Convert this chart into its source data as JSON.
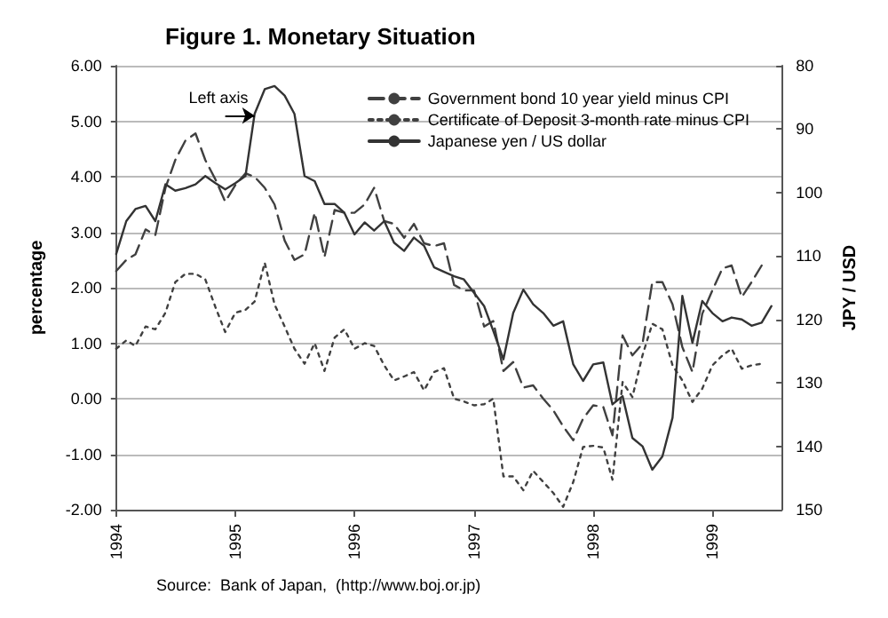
{
  "chart_data": {
    "type": "line",
    "title": "Figure 1. Monetary Situation",
    "ylabel": "percentage",
    "y2label": "JPY / USD",
    "annotations": [
      {
        "text": "Left axis",
        "x": "1995-03",
        "y": 5.1
      },
      "Source:  Bank of Japan,  (http://www.boj.or.jp)"
    ],
    "x": [
      "1994-01",
      "1994-02",
      "1994-03",
      "1994-04",
      "1994-05",
      "1994-06",
      "1994-07",
      "1994-08",
      "1994-09",
      "1994-10",
      "1994-11",
      "1994-12",
      "1995-01",
      "1995-02",
      "1995-03",
      "1995-04",
      "1995-05",
      "1995-06",
      "1995-07",
      "1995-08",
      "1995-09",
      "1995-10",
      "1995-11",
      "1995-12",
      "1996-01",
      "1996-02",
      "1996-03",
      "1996-04",
      "1996-05",
      "1996-06",
      "1996-07",
      "1996-08",
      "1996-09",
      "1996-10",
      "1996-11",
      "1996-12",
      "1997-01",
      "1997-02",
      "1997-03",
      "1997-04",
      "1997-05",
      "1997-06",
      "1997-07",
      "1997-08",
      "1997-09",
      "1997-10",
      "1997-11",
      "1997-12",
      "1998-01",
      "1998-02",
      "1998-03",
      "1998-04",
      "1998-05",
      "1998-06",
      "1998-07",
      "1998-08",
      "1998-09",
      "1998-10",
      "1998-11",
      "1998-12",
      "1999-01",
      "1999-02",
      "1999-03",
      "1999-04",
      "1999-05",
      "1999-06",
      "1999-07"
    ],
    "series": [
      {
        "name": "Government bond 10 year yield minus CPI",
        "color": "#404040",
        "line_style": "dashed",
        "values": [
          2.3,
          2.5,
          2.6,
          3.05,
          2.95,
          3.8,
          4.3,
          4.65,
          4.78,
          4.3,
          3.95,
          3.55,
          3.85,
          4.06,
          4.0,
          3.8,
          3.5,
          2.85,
          2.5,
          2.6,
          3.35,
          2.55,
          3.4,
          3.35,
          3.35,
          3.5,
          3.8,
          3.2,
          3.15,
          2.9,
          3.15,
          2.8,
          2.75,
          2.8,
          2.05,
          1.95,
          1.95,
          1.3,
          1.4,
          0.5,
          0.66,
          0.2,
          0.24,
          0.0,
          -0.21,
          -0.5,
          -0.75,
          -0.36,
          -0.12,
          -0.15,
          -0.66,
          1.14,
          0.78,
          0.99,
          2.1,
          2.1,
          1.7,
          0.93,
          0.48,
          1.53,
          1.95,
          2.35,
          2.4,
          1.83,
          2.1,
          2.4,
          null
        ]
      },
      {
        "name": "Certificate of Deposit 3-month rate minus CPI",
        "color": "#404040",
        "line_style": "dotted",
        "values": [
          0.9,
          1.05,
          0.95,
          1.3,
          1.25,
          1.55,
          2.1,
          2.25,
          2.25,
          2.15,
          1.65,
          1.2,
          1.55,
          1.6,
          1.75,
          2.45,
          1.7,
          1.3,
          0.9,
          0.63,
          1.0,
          0.5,
          1.1,
          1.25,
          0.9,
          1.0,
          0.95,
          0.6,
          0.33,
          0.4,
          0.48,
          0.15,
          0.48,
          0.55,
          0.0,
          -0.05,
          -0.12,
          -0.1,
          0.0,
          -1.4,
          -1.4,
          -1.65,
          -1.3,
          -1.5,
          -1.7,
          -1.95,
          -1.5,
          -0.87,
          -0.85,
          -0.88,
          -1.46,
          0.3,
          0.03,
          0.78,
          1.35,
          1.25,
          0.6,
          0.33,
          -0.06,
          0.18,
          0.6,
          0.78,
          0.9,
          0.54,
          0.6,
          0.63,
          null
        ]
      },
      {
        "name": "Japanese yen / US dollar",
        "color": "#333333",
        "line_style": "solid",
        "axis": "y2",
        "values": [
          109.7,
          104.5,
          102.6,
          102.1,
          104.5,
          98.7,
          99.7,
          99.3,
          98.7,
          97.4,
          98.5,
          99.5,
          98.5,
          97.4,
          87.6,
          83.7,
          83.2,
          84.7,
          87.6,
          97.4,
          98.2,
          101.8,
          101.8,
          103.2,
          106.6,
          104.7,
          106,
          104.5,
          107.9,
          109.2,
          107.1,
          108.4,
          111.8,
          112.5,
          113.2,
          113.7,
          115.8,
          117.9,
          121.8,
          126.3,
          119,
          115.3,
          117.6,
          119,
          121,
          120.3,
          127.1,
          129.7,
          127.1,
          126.8,
          133.4,
          132.1,
          138.7,
          140,
          143.7,
          141.6,
          135.5,
          116.3,
          123.7,
          117.1,
          119,
          120.3,
          119.7,
          120,
          121,
          120.5,
          117.9
        ]
      }
    ],
    "xlim": [
      "1994-01",
      "1999-08"
    ],
    "xticks": [
      "1994",
      "1995",
      "1996",
      "1997",
      "1998",
      "1999"
    ],
    "ylim": [
      -2,
      6
    ],
    "yticks": [
      {
        "value": -2,
        "label": "-2.00"
      },
      {
        "value": -1,
        "label": "-1.00"
      },
      {
        "value": 0,
        "label": "0.00"
      },
      {
        "value": 1,
        "label": "1.00"
      },
      {
        "value": 2,
        "label": "2.00"
      },
      {
        "value": 3,
        "label": "3.00"
      },
      {
        "value": 4,
        "label": "4.00"
      },
      {
        "value": 5,
        "label": "5.00"
      },
      {
        "value": 6,
        "label": "6.00"
      }
    ],
    "y2lim": [
      150,
      80
    ],
    "y2ticks": [
      80,
      90,
      100,
      110,
      120,
      130,
      140,
      150
    ],
    "grid": "y",
    "legend": "top right",
    "marker": "none"
  }
}
